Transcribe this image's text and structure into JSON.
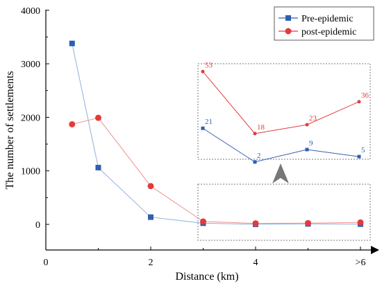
{
  "chart_data": {
    "type": "line",
    "xlabel": "Distance (km)",
    "ylabel": "The number of settlements",
    "x_tick_labels": [
      "0",
      "2",
      "4",
      ">6"
    ],
    "y_tick_labels": [
      "0",
      "1000",
      "2000",
      "3000",
      "4000"
    ],
    "xlim": [
      0,
      6.4
    ],
    "ylim": [
      -450,
      4000
    ],
    "legend_position": "top-right",
    "x": [
      0.5,
      1,
      2,
      3,
      4,
      5,
      6
    ],
    "series": [
      {
        "name": "Pre-epidemic",
        "color": "#2f5faf",
        "line_color": "#8fb0dd",
        "marker": "square",
        "values": [
          3380,
          1060,
          135,
          21,
          2,
          9,
          5
        ]
      },
      {
        "name": "post-epidemic",
        "color": "#e23b3b",
        "line_color": "#ef8f8f",
        "marker": "circle",
        "values": [
          1870,
          1990,
          715,
          53,
          18,
          23,
          36
        ]
      }
    ],
    "inset": {
      "x": [
        3,
        4,
        5,
        6
      ],
      "ylim": [
        -10,
        60
      ],
      "labels": {
        "Pre-epidemic": [
          "21",
          "2",
          "9",
          "5"
        ],
        "post-epidemic": [
          "53",
          "18",
          "23",
          "36"
        ]
      }
    }
  }
}
